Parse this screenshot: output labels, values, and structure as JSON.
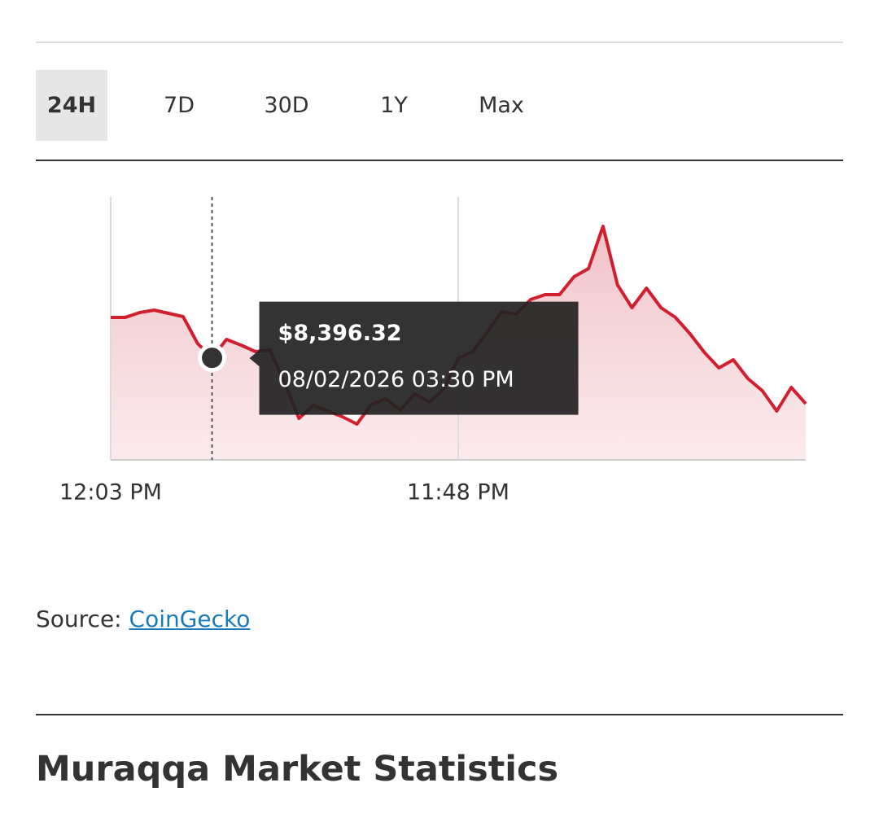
{
  "tabs": {
    "items": [
      "24H",
      "7D",
      "30D",
      "1Y",
      "Max"
    ],
    "selected": "24H"
  },
  "chart_data": {
    "type": "area",
    "categories": [
      "12:03 PM",
      null,
      null,
      null,
      null,
      null,
      null,
      null,
      null,
      null,
      null,
      null,
      null,
      null,
      null,
      null,
      null,
      null,
      null,
      null,
      null,
      null,
      null,
      null,
      "11:48 PM",
      null,
      null,
      null,
      null,
      null,
      null,
      null,
      null,
      null,
      null,
      null,
      null,
      null,
      null,
      null,
      null,
      null,
      null,
      null,
      null,
      null,
      null,
      null,
      null
    ],
    "values": [
      8446,
      8446,
      8452,
      8455,
      8451,
      8447,
      8414,
      8396.32,
      8419,
      8412,
      8404,
      8406,
      8366,
      8322,
      8338,
      8331,
      8324,
      8315,
      8339,
      8346,
      8332,
      8352,
      8342,
      8358,
      8396,
      8404,
      8428,
      8453,
      8450,
      8468,
      8474,
      8474,
      8496,
      8506,
      8558,
      8486,
      8458,
      8482,
      8458,
      8446,
      8426,
      8403,
      8384,
      8394,
      8371,
      8356,
      8331,
      8360,
      8340
    ],
    "value_labels": [
      null,
      null,
      null,
      null,
      null,
      null,
      null,
      "$8,396.32",
      null,
      null,
      null,
      null,
      null,
      null,
      null,
      null,
      null,
      null,
      null,
      null,
      null,
      null,
      null,
      null,
      null,
      null,
      null,
      null,
      null,
      null,
      null,
      null,
      null,
      null,
      null,
      null,
      null,
      null,
      null,
      null,
      null,
      null,
      null,
      null,
      null,
      null,
      null,
      null,
      null
    ],
    "tooltip": "08/02/2026 03:30 PM",
    "color": "#d0202e",
    "ylim": [
      8271,
      8594
    ]
  },
  "source": {
    "label": "Source:",
    "link": "CoinGecko"
  },
  "section_title": "Muraqqa Market Statistics"
}
